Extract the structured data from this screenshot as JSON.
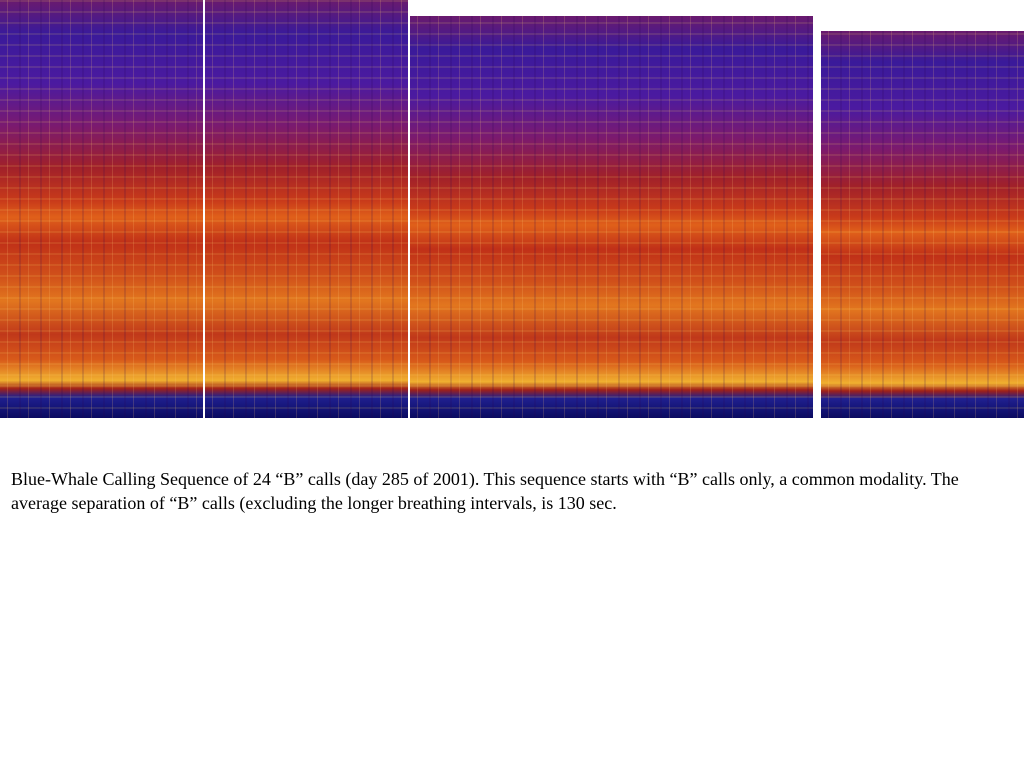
{
  "caption": "Blue-Whale Calling Sequence of 24 “B” calls (day 285 of 2001).   This sequence starts with “B” calls only, a common modality.  The average separation of “B” calls (excluding the longer breathing intervals, is 130 sec."
}
